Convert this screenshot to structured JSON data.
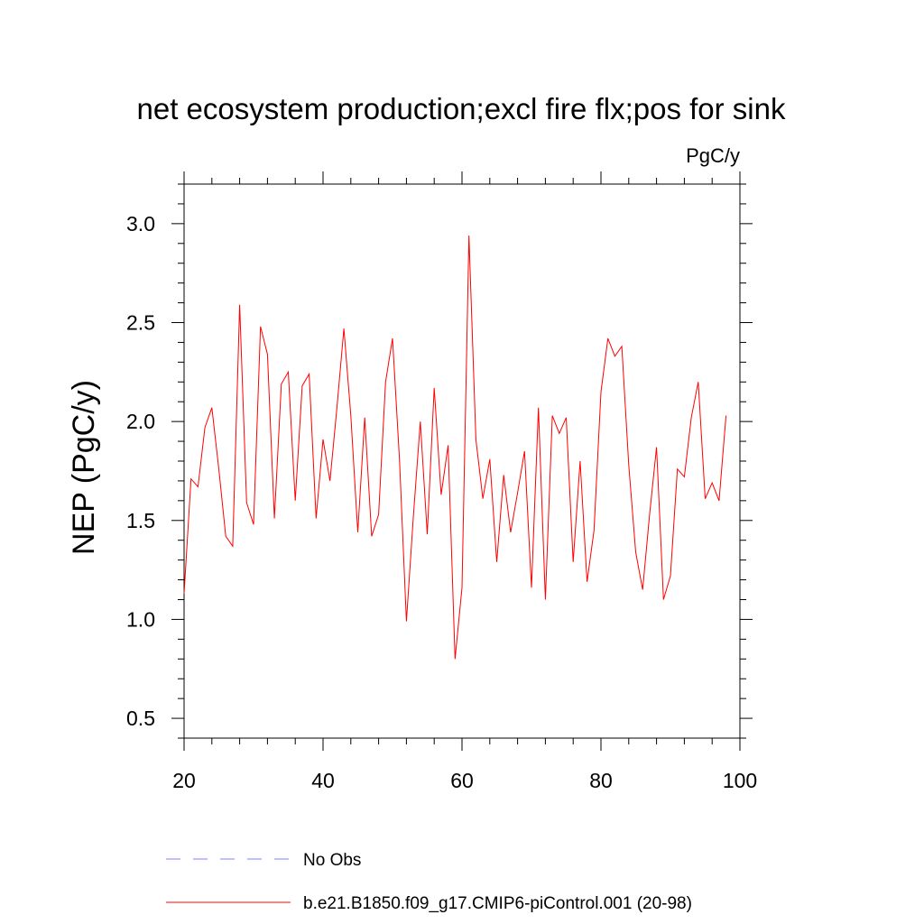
{
  "chart_data": {
    "type": "line",
    "title": "net ecosystem production;excl fire flx;pos for sink",
    "units": "PgC/y",
    "xlabel": "",
    "ylabel": "NEP  (PgC/y)",
    "xlim": [
      20,
      100
    ],
    "ylim": [
      0.4,
      3.2
    ],
    "xticks": [
      20,
      40,
      60,
      80,
      100
    ],
    "xtick_labels": [
      "20",
      "40",
      "60",
      "80",
      "100"
    ],
    "yticks": [
      0.5,
      1.0,
      1.5,
      2.0,
      2.5,
      3.0
    ],
    "ytick_labels": [
      "0.5",
      "1.0",
      "1.5",
      "2.0",
      "2.5",
      "3.0"
    ],
    "series": [
      {
        "name": "b.e21.B1850.f09_g17.CMIP6-piControl.001 (20-98)",
        "color": "#ff0000",
        "style": "solid",
        "x": [
          20,
          21,
          22,
          23,
          24,
          25,
          26,
          27,
          28,
          29,
          30,
          31,
          32,
          33,
          34,
          35,
          36,
          37,
          38,
          39,
          40,
          41,
          42,
          43,
          44,
          45,
          46,
          47,
          48,
          49,
          50,
          51,
          52,
          53,
          54,
          55,
          56,
          57,
          58,
          59,
          60,
          61,
          62,
          63,
          64,
          65,
          66,
          67,
          68,
          69,
          70,
          71,
          72,
          73,
          74,
          75,
          76,
          77,
          78,
          79,
          80,
          81,
          82,
          83,
          84,
          85,
          86,
          87,
          88,
          89,
          90,
          91,
          92,
          93,
          94,
          95,
          96,
          97,
          98
        ],
        "values": [
          1.13,
          1.71,
          1.67,
          1.97,
          2.07,
          1.76,
          1.42,
          1.37,
          2.59,
          1.59,
          1.48,
          2.48,
          2.34,
          1.51,
          2.19,
          2.25,
          1.6,
          2.18,
          2.24,
          1.51,
          1.91,
          1.7,
          2.07,
          2.47,
          2.03,
          1.44,
          2.02,
          1.42,
          1.53,
          2.2,
          2.42,
          1.81,
          0.99,
          1.52,
          2.0,
          1.43,
          2.17,
          1.63,
          1.88,
          0.8,
          1.16,
          2.94,
          1.91,
          1.61,
          1.81,
          1.29,
          1.73,
          1.44,
          1.64,
          1.85,
          1.16,
          2.07,
          1.1,
          2.03,
          1.94,
          2.02,
          1.29,
          1.8,
          1.19,
          1.45,
          2.15,
          2.42,
          2.33,
          2.38,
          1.78,
          1.34,
          1.15,
          1.53,
          1.87,
          1.1,
          1.22,
          1.76,
          1.72,
          2.02,
          2.2,
          1.61,
          1.69,
          1.6,
          2.03
        ]
      },
      {
        "name": "No Obs",
        "color": "#8080ff",
        "style": "dashed",
        "x": [],
        "values": []
      }
    ],
    "grid": false,
    "legend_position": "bottom-center"
  }
}
